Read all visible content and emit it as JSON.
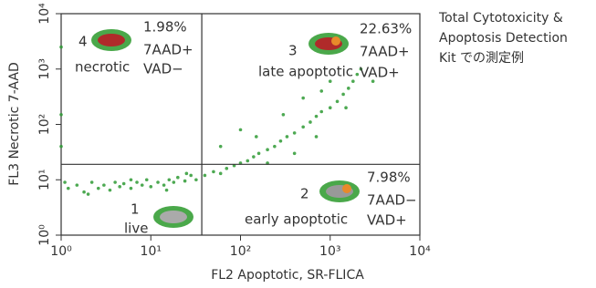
{
  "chart_data": {
    "type": "scatter",
    "x_label": "FL2 Apoptotic, SR-FLICA",
    "y_label": "FL3 Necrotic 7-AAD",
    "note": [
      "Total Cytotoxicity &",
      "Apoptosis Detection",
      "Kit での測定例"
    ],
    "x_log": true,
    "y_log": true,
    "xlim": [
      1,
      10000
    ],
    "ylim": [
      1,
      10000
    ],
    "xticks": [
      {
        "value": 1,
        "label": "10⁰"
      },
      {
        "value": 10,
        "label": "10¹"
      },
      {
        "value": 100,
        "label": "10²"
      },
      {
        "value": 1000,
        "label": "10³"
      },
      {
        "value": 10000,
        "label": "10⁴"
      }
    ],
    "yticks": [
      {
        "value": 1,
        "label": "10⁰"
      },
      {
        "value": 10,
        "label": "10¹"
      },
      {
        "value": 100,
        "label": "10²"
      },
      {
        "value": 1000,
        "label": "10³"
      },
      {
        "value": 10000,
        "label": "10⁴"
      }
    ],
    "gates": {
      "x": 37,
      "y": 19
    },
    "color": "#2e9a34",
    "x": [
      1.2,
      1.5,
      1.8,
      2.2,
      2.6,
      3,
      3.5,
      4,
      4.5,
      5,
      6,
      7,
      8,
      9,
      10,
      12,
      14,
      16,
      18,
      20,
      24,
      28,
      32,
      1.1,
      2,
      6,
      15,
      25,
      40,
      50,
      60,
      70,
      85,
      100,
      120,
      140,
      160,
      200,
      240,
      280,
      330,
      400,
      500,
      600,
      700,
      800,
      1000,
      1200,
      1400,
      1600,
      1800,
      2000,
      2200,
      150,
      300,
      500,
      800,
      60,
      100,
      1000,
      200,
      400,
      700,
      1500,
      3000,
      1,
      1,
      1
    ],
    "y": [
      7,
      8,
      6,
      9,
      7,
      8,
      6.5,
      9,
      7.5,
      8.5,
      7,
      9,
      8,
      10,
      7.5,
      9,
      8,
      10,
      9,
      11,
      9.5,
      12,
      10,
      9,
      5.5,
      10,
      6.5,
      13,
      12,
      14,
      13,
      16,
      18,
      20,
      22,
      26,
      30,
      35,
      40,
      50,
      60,
      70,
      90,
      110,
      140,
      170,
      200,
      260,
      350,
      450,
      600,
      800,
      1000,
      60,
      150,
      300,
      400,
      40,
      80,
      600,
      20,
      30,
      60,
      200,
      600,
      40,
      150,
      2500
    ],
    "quadrants": [
      {
        "number": "4",
        "percent": "1.98%",
        "markers": [
          "7AAD+",
          "VAD−"
        ],
        "label": "necrotic"
      },
      {
        "number": "3",
        "percent": "22.63%",
        "markers": [
          "7AAD+",
          "VAD+"
        ],
        "label": "late apoptotic"
      },
      {
        "number": "2",
        "percent": "7.98%",
        "markers": [
          "7AAD−",
          "VAD+"
        ],
        "label": "early apoptotic"
      },
      {
        "number": "1",
        "label": "live"
      }
    ]
  }
}
